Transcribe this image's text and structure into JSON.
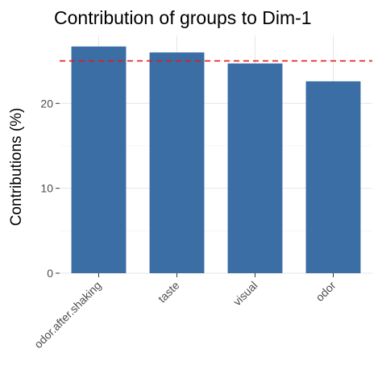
{
  "chart_data": {
    "type": "bar",
    "title": "Contribution of groups to Dim-1",
    "xlabel": "",
    "ylabel": "Contributions (%)",
    "categories": [
      "odor.after.shaking",
      "taste",
      "visual",
      "odor"
    ],
    "values": [
      26.7,
      26.0,
      24.7,
      22.6
    ],
    "ylim": [
      0,
      28
    ],
    "yticks": [
      0,
      10,
      20
    ],
    "ytick_labels": [
      "0",
      "10",
      "20"
    ],
    "reference_line": 25,
    "grid": true,
    "legend": "none",
    "colors": {
      "bar": "#3A6EA5",
      "reference_line": "#E41A1C",
      "grid_major": "#E6E6E6",
      "grid_minor": "#F2F2F2",
      "tick": "#333333"
    }
  }
}
